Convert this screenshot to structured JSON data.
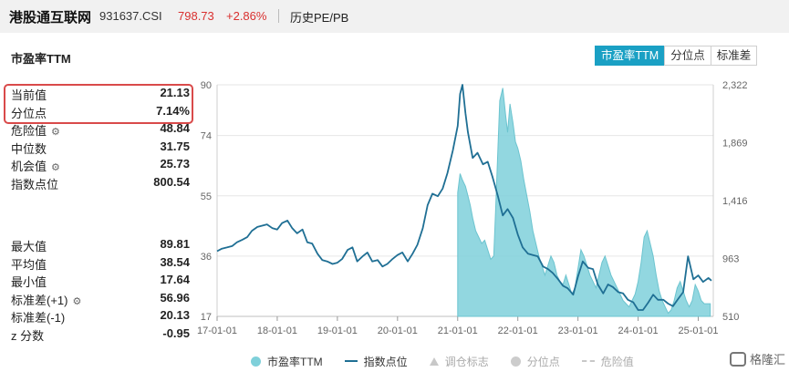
{
  "header": {
    "title": "港股通互联网",
    "code": "931637.CSI",
    "price": "798.73",
    "change": "+2.86%",
    "history_link": "历史PE/PB"
  },
  "section_title": "市盈率TTM",
  "tabs": [
    {
      "label": "市盈率TTM",
      "active": true
    },
    {
      "label": "分位点",
      "active": false
    },
    {
      "label": "标准差",
      "active": false
    }
  ],
  "stats_top": [
    {
      "label": "当前值",
      "value": "21.13"
    },
    {
      "label": "分位点",
      "value": "7.14%"
    },
    {
      "label": "危险值",
      "value": "48.84",
      "gear": true
    },
    {
      "label": "中位数",
      "value": "31.75"
    },
    {
      "label": "机会值",
      "value": "25.73",
      "gear": true
    },
    {
      "label": "指数点位",
      "value": "800.54"
    }
  ],
  "stats_bottom": [
    {
      "label": "最大值",
      "value": "89.81"
    },
    {
      "label": "平均值",
      "value": "38.54"
    },
    {
      "label": "最小值",
      "value": "17.64"
    },
    {
      "label": "标准差(+1)",
      "value": "56.96",
      "gear": true
    },
    {
      "label": "标准差(-1)",
      "value": "20.13"
    },
    {
      "label": "z 分数",
      "value": "-0.95"
    }
  ],
  "legend": [
    {
      "label": "市盈率TTM",
      "symbol": "dot",
      "color": "#7fd0da"
    },
    {
      "label": "指数点位",
      "symbol": "line",
      "color": "#1f6f94"
    },
    {
      "label": "调仓标志",
      "symbol": "triangle",
      "faded": true
    },
    {
      "label": "分位点",
      "symbol": "dot",
      "color": "#cccccc",
      "faded": true
    },
    {
      "label": "危险值",
      "symbol": "dash",
      "faded": true
    }
  ],
  "watermark": "格隆汇",
  "chart_data": {
    "type": "area",
    "x_ticks": [
      "17-01-01",
      "18-01-01",
      "19-01-01",
      "20-01-01",
      "21-01-01",
      "22-01-01",
      "23-01-01",
      "24-01-01",
      "25-01-01"
    ],
    "x_range": [
      2017.0,
      2025.25
    ],
    "y_left": {
      "ticks": [
        17,
        36,
        55,
        74,
        90
      ],
      "range": [
        17,
        90
      ]
    },
    "y_right": {
      "ticks": [
        510,
        963,
        1416,
        1869,
        2322
      ],
      "range": [
        510,
        2322
      ]
    },
    "series": [
      {
        "name": "市盈率TTM",
        "axis": "left",
        "color": "#7fd0da",
        "x": [
          2021.0,
          2021.04,
          2021.08,
          2021.13,
          2021.17,
          2021.21,
          2021.25,
          2021.3,
          2021.35,
          2021.4,
          2021.45,
          2021.5,
          2021.55,
          2021.6,
          2021.63,
          2021.67,
          2021.7,
          2021.75,
          2021.8,
          2021.83,
          2021.87,
          2021.92,
          2021.96,
          2022.0,
          2022.05,
          2022.1,
          2022.15,
          2022.2,
          2022.25,
          2022.3,
          2022.35,
          2022.4,
          2022.45,
          2022.5,
          2022.55,
          2022.6,
          2022.65,
          2022.7,
          2022.75,
          2022.8,
          2022.85,
          2022.9,
          2022.95,
          2023.0,
          2023.05,
          2023.1,
          2023.15,
          2023.2,
          2023.25,
          2023.3,
          2023.35,
          2023.4,
          2023.45,
          2023.5,
          2023.55,
          2023.6,
          2023.65,
          2023.7,
          2023.75,
          2023.8,
          2023.85,
          2023.9,
          2023.95,
          2024.0,
          2024.05,
          2024.1,
          2024.15,
          2024.2,
          2024.25,
          2024.3,
          2024.35,
          2024.4,
          2024.45,
          2024.5,
          2024.55,
          2024.6,
          2024.65,
          2024.7,
          2024.75,
          2024.8,
          2024.85,
          2024.9,
          2024.95,
          2025.0,
          2025.05,
          2025.1,
          2025.15,
          2025.2
        ],
        "values": [
          56,
          62,
          60,
          58,
          55,
          52,
          48,
          44,
          42,
          40,
          41,
          38,
          35,
          36,
          50,
          70,
          85,
          89,
          80,
          75,
          84,
          78,
          72,
          70,
          66,
          60,
          55,
          50,
          44,
          40,
          36,
          33,
          30,
          33,
          36,
          34,
          30,
          28,
          27,
          30,
          27,
          24,
          26,
          32,
          38,
          36,
          33,
          30,
          28,
          26,
          30,
          34,
          36,
          33,
          30,
          28,
          26,
          24,
          22,
          21,
          20,
          22,
          24,
          28,
          34,
          42,
          44,
          40,
          36,
          30,
          25,
          22,
          20,
          18,
          19,
          22,
          26,
          28,
          25,
          22,
          20,
          22,
          27,
          25,
          22,
          21,
          21,
          21
        ]
      },
      {
        "name": "指数点位",
        "axis": "right",
        "color": "#1f6f94",
        "x": [
          2017.0,
          2017.08,
          2017.17,
          2017.25,
          2017.33,
          2017.42,
          2017.5,
          2017.58,
          2017.67,
          2017.75,
          2017.83,
          2017.92,
          2018.0,
          2018.08,
          2018.17,
          2018.25,
          2018.33,
          2018.42,
          2018.5,
          2018.58,
          2018.67,
          2018.75,
          2018.83,
          2018.92,
          2019.0,
          2019.08,
          2019.17,
          2019.25,
          2019.33,
          2019.42,
          2019.5,
          2019.58,
          2019.67,
          2019.75,
          2019.83,
          2019.92,
          2020.0,
          2020.08,
          2020.17,
          2020.25,
          2020.33,
          2020.42,
          2020.5,
          2020.58,
          2020.67,
          2020.75,
          2020.83,
          2020.92,
          2021.0,
          2021.04,
          2021.08,
          2021.13,
          2021.17,
          2021.25,
          2021.33,
          2021.42,
          2021.5,
          2021.58,
          2021.67,
          2021.75,
          2021.83,
          2021.92,
          2022.0,
          2022.08,
          2022.17,
          2022.25,
          2022.33,
          2022.42,
          2022.5,
          2022.58,
          2022.67,
          2022.75,
          2022.83,
          2022.92,
          2023.0,
          2023.08,
          2023.17,
          2023.25,
          2023.33,
          2023.42,
          2023.5,
          2023.58,
          2023.67,
          2023.75,
          2023.83,
          2023.92,
          2024.0,
          2024.08,
          2024.17,
          2024.25,
          2024.33,
          2024.42,
          2024.5,
          2024.58,
          2024.67,
          2024.75,
          2024.83,
          2024.92,
          2025.0,
          2025.08,
          2025.17,
          2025.22
        ],
        "values": [
          1020,
          1040,
          1050,
          1060,
          1090,
          1110,
          1130,
          1180,
          1210,
          1220,
          1230,
          1200,
          1190,
          1240,
          1260,
          1200,
          1160,
          1190,
          1090,
          1080,
          1000,
          950,
          940,
          920,
          930,
          960,
          1030,
          1050,
          940,
          980,
          1010,
          940,
          950,
          900,
          920,
          960,
          990,
          1010,
          940,
          1000,
          1070,
          1200,
          1380,
          1470,
          1450,
          1510,
          1630,
          1810,
          2000,
          2250,
          2322,
          2100,
          1950,
          1750,
          1790,
          1700,
          1720,
          1600,
          1450,
          1300,
          1350,
          1280,
          1150,
          1050,
          1000,
          990,
          980,
          900,
          880,
          850,
          800,
          750,
          730,
          680,
          820,
          940,
          890,
          880,
          760,
          690,
          760,
          740,
          700,
          690,
          640,
          620,
          560,
          560,
          620,
          680,
          640,
          640,
          610,
          590,
          650,
          700,
          980,
          800,
          830,
          780,
          810,
          790
        ]
      }
    ]
  }
}
